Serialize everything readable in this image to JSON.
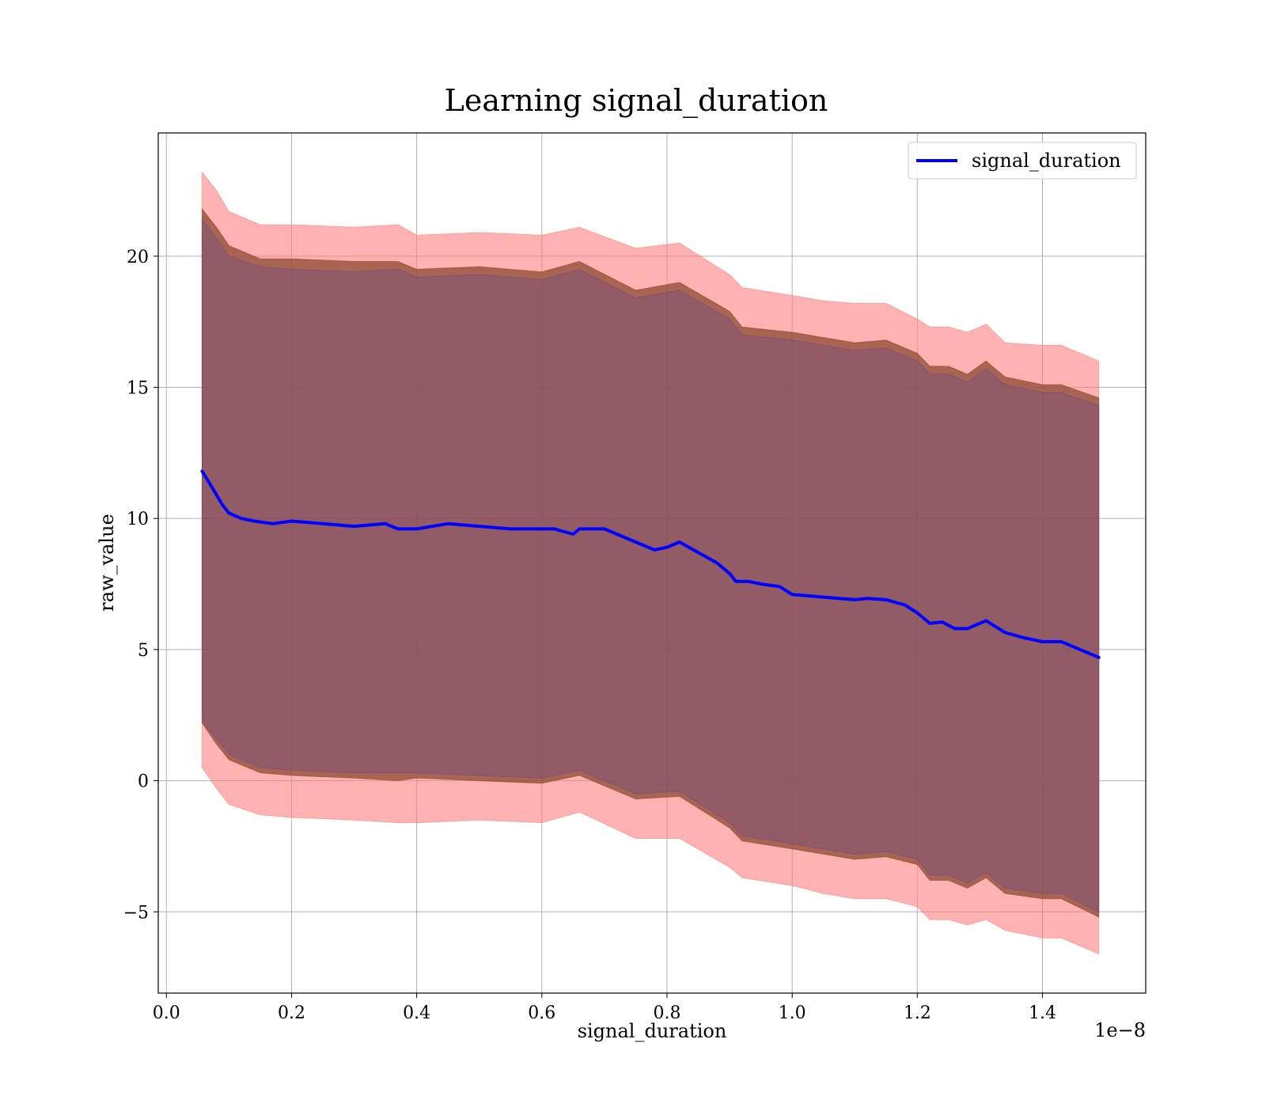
{
  "chart_data": {
    "type": "line",
    "title": "Learning signal_duration",
    "xlabel": "signal_duration",
    "ylabel": "raw_value",
    "x_offset_text": "1e−8",
    "xlim": [
      -0.013,
      1.565
    ],
    "ylim": [
      -8.1,
      24.7
    ],
    "x_ticks": [
      0.0,
      0.2,
      0.4,
      0.6,
      0.8,
      1.0,
      1.2,
      1.4
    ],
    "x_tick_labels": [
      "0.0",
      "0.2",
      "0.4",
      "0.6",
      "0.8",
      "1.0",
      "1.2",
      "1.4"
    ],
    "y_ticks": [
      -5,
      0,
      5,
      10,
      15,
      20
    ],
    "y_tick_labels": [
      "−5",
      "0",
      "5",
      "10",
      "15",
      "20"
    ],
    "grid": true,
    "legend_position": "top-right",
    "series": [
      {
        "name": "signal_duration",
        "color": "#0000ff",
        "x": [
          0.057,
          0.07,
          0.08,
          0.09,
          0.1,
          0.12,
          0.14,
          0.17,
          0.2,
          0.25,
          0.3,
          0.35,
          0.37,
          0.4,
          0.45,
          0.5,
          0.55,
          0.6,
          0.62,
          0.65,
          0.66,
          0.7,
          0.75,
          0.78,
          0.8,
          0.82,
          0.85,
          0.88,
          0.9,
          0.91,
          0.93,
          0.95,
          0.98,
          1.0,
          1.05,
          1.1,
          1.12,
          1.15,
          1.18,
          1.2,
          1.22,
          1.24,
          1.26,
          1.28,
          1.3,
          1.31,
          1.34,
          1.37,
          1.4,
          1.43,
          1.49
        ],
        "y": [
          11.8,
          11.3,
          10.9,
          10.5,
          10.2,
          10.0,
          9.9,
          9.8,
          9.9,
          9.8,
          9.7,
          9.8,
          9.6,
          9.6,
          9.8,
          9.7,
          9.6,
          9.6,
          9.6,
          9.4,
          9.6,
          9.6,
          9.1,
          8.8,
          8.9,
          9.1,
          8.7,
          8.3,
          7.9,
          7.6,
          7.6,
          7.5,
          7.4,
          7.1,
          7.0,
          6.9,
          6.95,
          6.9,
          6.7,
          6.4,
          6.0,
          6.05,
          5.8,
          5.8,
          6.0,
          6.1,
          5.65,
          5.45,
          5.3,
          5.3,
          4.7
        ]
      }
    ],
    "bands": [
      {
        "color": "#ff7f7f",
        "opacity": 0.6,
        "x": [
          0.057,
          0.08,
          0.1,
          0.15,
          0.2,
          0.3,
          0.37,
          0.4,
          0.5,
          0.6,
          0.66,
          0.75,
          0.82,
          0.9,
          0.92,
          1.0,
          1.05,
          1.1,
          1.15,
          1.2,
          1.22,
          1.25,
          1.28,
          1.31,
          1.34,
          1.4,
          1.43,
          1.49
        ],
        "upper": [
          23.2,
          22.5,
          21.7,
          21.2,
          21.2,
          21.1,
          21.2,
          20.8,
          20.9,
          20.8,
          21.1,
          20.3,
          20.5,
          19.3,
          18.8,
          18.5,
          18.3,
          18.2,
          18.2,
          17.6,
          17.3,
          17.3,
          17.1,
          17.4,
          16.7,
          16.6,
          16.6,
          16.0
        ],
        "lower": [
          0.5,
          -0.3,
          -0.9,
          -1.3,
          -1.4,
          -1.5,
          -1.6,
          -1.6,
          -1.5,
          -1.6,
          -1.2,
          -2.2,
          -2.2,
          -3.3,
          -3.7,
          -4.0,
          -4.3,
          -4.5,
          -4.5,
          -4.8,
          -5.3,
          -5.3,
          -5.5,
          -5.3,
          -5.7,
          -6.0,
          -6.0,
          -6.6
        ]
      },
      {
        "color": "#8b4a2f",
        "opacity": 0.75,
        "x": [
          0.057,
          0.08,
          0.1,
          0.15,
          0.2,
          0.3,
          0.37,
          0.4,
          0.5,
          0.6,
          0.66,
          0.75,
          0.82,
          0.9,
          0.92,
          1.0,
          1.05,
          1.1,
          1.15,
          1.2,
          1.22,
          1.25,
          1.28,
          1.31,
          1.34,
          1.4,
          1.43,
          1.49
        ],
        "upper": [
          21.8,
          21.1,
          20.4,
          19.9,
          19.9,
          19.8,
          19.8,
          19.5,
          19.6,
          19.4,
          19.8,
          18.7,
          19.0,
          17.9,
          17.3,
          17.1,
          16.9,
          16.7,
          16.8,
          16.3,
          15.8,
          15.8,
          15.5,
          16.0,
          15.4,
          15.1,
          15.1,
          14.6
        ],
        "lower": [
          2.2,
          1.4,
          0.8,
          0.3,
          0.2,
          0.1,
          0.0,
          0.1,
          0.0,
          -0.1,
          0.2,
          -0.7,
          -0.6,
          -1.8,
          -2.3,
          -2.6,
          -2.8,
          -3.0,
          -2.9,
          -3.2,
          -3.8,
          -3.8,
          -4.1,
          -3.7,
          -4.3,
          -4.5,
          -4.5,
          -5.2
        ]
      },
      {
        "color": "#6a4a8f",
        "opacity": 0.35,
        "x": [
          0.057,
          0.08,
          0.1,
          0.15,
          0.2,
          0.3,
          0.37,
          0.4,
          0.5,
          0.6,
          0.66,
          0.75,
          0.82,
          0.9,
          0.92,
          1.0,
          1.05,
          1.1,
          1.15,
          1.2,
          1.22,
          1.25,
          1.28,
          1.31,
          1.34,
          1.4,
          1.43,
          1.49
        ],
        "upper": [
          21.4,
          20.7,
          20.0,
          19.6,
          19.5,
          19.4,
          19.5,
          19.2,
          19.3,
          19.1,
          19.5,
          18.4,
          18.7,
          17.6,
          17.0,
          16.8,
          16.6,
          16.4,
          16.5,
          16.0,
          15.5,
          15.5,
          15.2,
          15.7,
          15.1,
          14.8,
          14.8,
          14.3
        ],
        "lower": [
          2.3,
          1.6,
          1.0,
          0.5,
          0.4,
          0.3,
          0.3,
          0.3,
          0.2,
          0.1,
          0.4,
          -0.5,
          -0.4,
          -1.6,
          -2.1,
          -2.4,
          -2.6,
          -2.8,
          -2.7,
          -3.0,
          -3.6,
          -3.6,
          -3.9,
          -3.5,
          -4.1,
          -4.3,
          -4.3,
          -5.0
        ]
      }
    ]
  }
}
